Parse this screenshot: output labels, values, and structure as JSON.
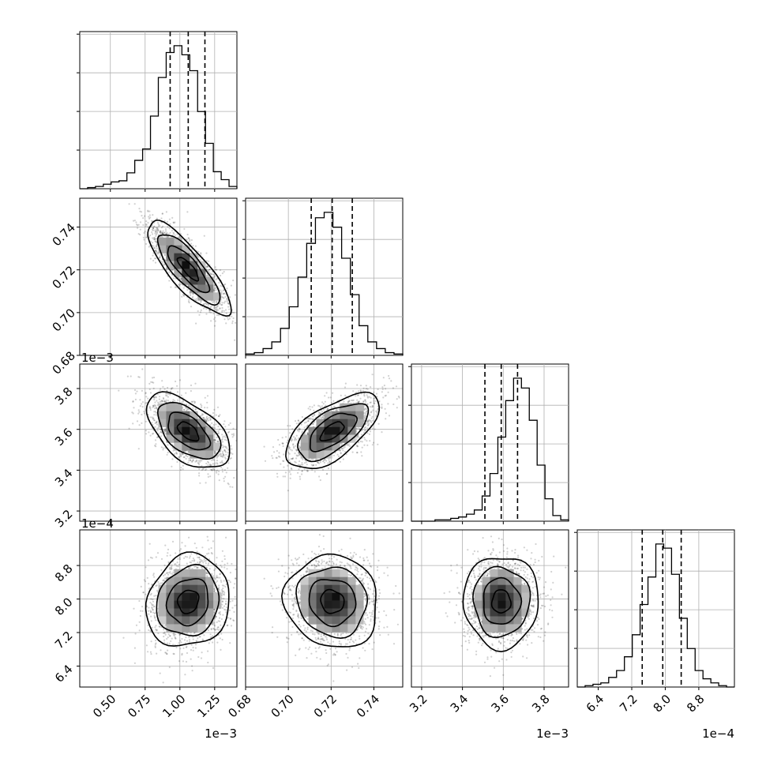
{
  "chart_data": {
    "type": "corner",
    "grid": true,
    "parameters": [
      {
        "lim": [
          0.00028,
          0.00141
        ],
        "ticks": [
          "0.50",
          "0.75",
          "1.00",
          "1.25"
        ],
        "tick_values": [
          0.0005,
          0.00075,
          0.001,
          0.00125
        ],
        "offset": "1e−3",
        "quantiles": [
          0.00093,
          0.00106,
          0.00118
        ]
      },
      {
        "lim": [
          0.68,
          0.7535
        ],
        "ticks": [
          "0.68",
          "0.70",
          "0.72",
          "0.74"
        ],
        "tick_values": [
          0.68,
          0.7,
          0.72,
          0.74
        ],
        "offset": "",
        "quantiles": [
          0.7107,
          0.7205,
          0.7299
        ]
      },
      {
        "lim": [
          0.00315,
          0.00392
        ],
        "ticks": [
          "3.2",
          "3.4",
          "3.6",
          "3.8"
        ],
        "tick_values": [
          0.0032,
          0.0034,
          0.0036,
          0.0038
        ],
        "offset": "1e−3",
        "quantiles": [
          0.00351,
          0.00359,
          0.00367
        ]
      },
      {
        "lim": [
          0.00059,
          0.000965
        ],
        "ticks": [
          "6.4",
          "7.2",
          "8.0",
          "8.8"
        ],
        "tick_values": [
          0.00064,
          0.00072,
          0.0008,
          0.00088
        ],
        "offset": "1e−4",
        "quantiles": [
          0.000745,
          0.000794,
          0.000838
        ]
      }
    ],
    "histograms": [
      {
        "param": 0,
        "bins": [
          0.00028,
          0.00141
        ],
        "counts": [
          0,
          1,
          2,
          4,
          6,
          7,
          14,
          25,
          35,
          64,
          98,
          120,
          126,
          118,
          104,
          68,
          40,
          15,
          8,
          2
        ]
      },
      {
        "param": 1,
        "bins": [
          0.68,
          0.7535
        ],
        "counts": [
          1,
          2,
          5,
          10,
          20,
          36,
          58,
          83,
          102,
          106,
          95,
          72,
          45,
          22,
          10,
          5,
          2,
          1
        ]
      },
      {
        "param": 2,
        "bins": [
          0.00315,
          0.00392
        ],
        "counts": [
          0,
          0,
          0,
          1,
          1,
          2,
          3,
          5,
          8,
          18,
          34,
          60,
          86,
          102,
          95,
          72,
          40,
          16,
          4,
          1
        ]
      },
      {
        "param": 3,
        "bins": [
          0.00059,
          0.000965
        ],
        "counts": [
          0,
          1,
          2,
          3,
          7,
          12,
          22,
          38,
          60,
          80,
          104,
          101,
          82,
          50,
          28,
          12,
          6,
          3,
          1,
          0
        ]
      }
    ],
    "pairs": [
      {
        "x_param": 0,
        "y_param": 1,
        "mean": [
          0.00106,
          0.7205
        ],
        "sd": [
          0.00013,
          0.0095
        ],
        "rho": -0.82
      },
      {
        "x_param": 0,
        "y_param": 2,
        "mean": [
          0.00106,
          0.00359
        ],
        "sd": [
          0.00013,
          8e-05
        ],
        "rho": -0.55
      },
      {
        "x_param": 1,
        "y_param": 2,
        "mean": [
          0.7205,
          0.00359
        ],
        "sd": [
          0.0095,
          8e-05
        ],
        "rho": 0.62
      },
      {
        "x_param": 0,
        "y_param": 3,
        "mean": [
          0.00106,
          0.000794
        ],
        "sd": [
          0.00013,
          4.8e-05
        ],
        "rho": 0.12
      },
      {
        "x_param": 1,
        "y_param": 3,
        "mean": [
          0.7205,
          0.000794
        ],
        "sd": [
          0.0095,
          4.8e-05
        ],
        "rho": -0.08
      },
      {
        "x_param": 2,
        "y_param": 3,
        "mean": [
          0.00359,
          0.000794
        ],
        "sd": [
          8e-05,
          4.8e-05
        ],
        "rho": 0.0
      }
    ],
    "contour_levels_sigma": [
      0.5,
      1.0,
      1.5,
      2.0
    ]
  }
}
